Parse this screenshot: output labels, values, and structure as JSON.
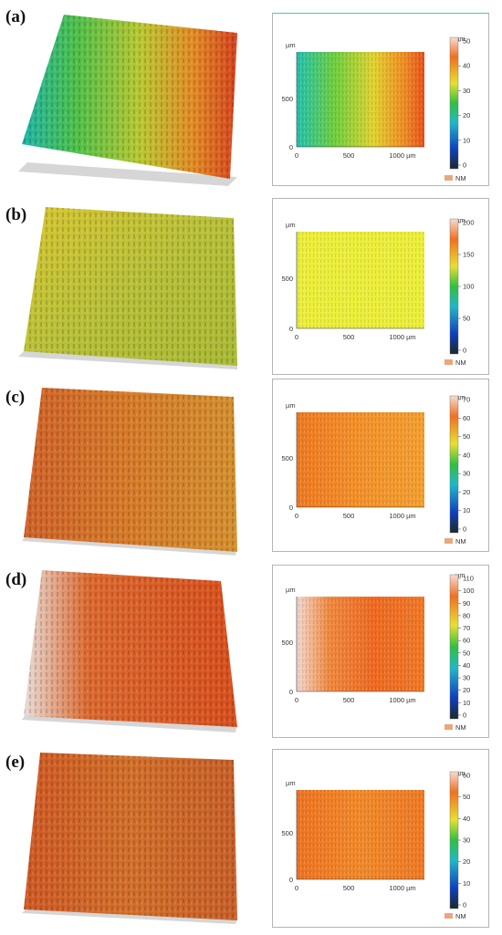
{
  "unit": "µm",
  "legend_nm": "NM",
  "x_ticks": [
    "0",
    "500",
    "1000 µm"
  ],
  "y_ticks": [
    "500",
    "0"
  ],
  "y_unit_label": "µm",
  "panels": [
    {
      "label": "(a)",
      "scale": [
        "50",
        "40",
        "30",
        "20",
        "10",
        "0"
      ]
    },
    {
      "label": "(b)",
      "scale": [
        "200",
        "150",
        "100",
        "50",
        "0"
      ]
    },
    {
      "label": "(c)",
      "scale": [
        "70",
        "60",
        "50",
        "40",
        "30",
        "20",
        "10",
        "0"
      ]
    },
    {
      "label": "(d)",
      "scale": [
        "110",
        "100",
        "90",
        "80",
        "70",
        "60",
        "50",
        "40",
        "30",
        "20",
        "10",
        "0"
      ]
    },
    {
      "label": "(e)",
      "scale": [
        "60",
        "50",
        "40",
        "30",
        "20",
        "10",
        "0"
      ]
    }
  ],
  "colors": {
    "frame": "#b5b5b5",
    "accent_top": "#33cccc",
    "nm_swatch": "#e8a87c"
  }
}
